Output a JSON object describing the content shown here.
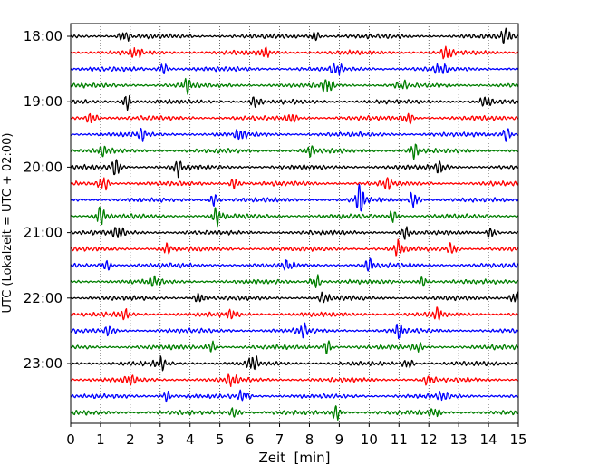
{
  "chart_data": {
    "type": "line",
    "title": "",
    "xlabel": "Zeit  [min]",
    "ylabel": "UTC (Lokalzeit = UTC + 02:00)",
    "xlim": [
      0,
      15
    ],
    "x_ticks": [
      0,
      1,
      2,
      3,
      4,
      5,
      6,
      7,
      8,
      9,
      10,
      11,
      12,
      13,
      14,
      15
    ],
    "x_tick_labels": [
      "0",
      "1",
      "2",
      "3",
      "4",
      "5",
      "6",
      "7",
      "8",
      "9",
      "10",
      "11",
      "12",
      "13",
      "14",
      "15"
    ],
    "y_ticks": [
      "18:00",
      "19:00",
      "20:00",
      "21:00",
      "22:00",
      "23:00"
    ],
    "grid": "vertical dotted",
    "trace_interval_minutes": 15,
    "color_cycle": [
      "#000000",
      "#ff0000",
      "#0000ff",
      "#007f00"
    ],
    "series": [
      {
        "start": "18:00",
        "color": "#000000",
        "events": [
          {
            "x": 1.8,
            "amp": 0.35
          },
          {
            "x": 8.2,
            "amp": 0.3
          },
          {
            "x": 14.6,
            "amp": 0.6
          }
        ]
      },
      {
        "start": "18:15",
        "color": "#ff0000",
        "events": [
          {
            "x": 2.2,
            "amp": 0.3
          },
          {
            "x": 6.5,
            "amp": 0.3
          },
          {
            "x": 12.6,
            "amp": 0.4
          }
        ]
      },
      {
        "start": "18:30",
        "color": "#0000ff",
        "events": [
          {
            "x": 3.1,
            "amp": 0.35
          },
          {
            "x": 8.9,
            "amp": 0.4
          },
          {
            "x": 12.4,
            "amp": 0.35
          }
        ]
      },
      {
        "start": "18:45",
        "color": "#007f00",
        "events": [
          {
            "x": 3.9,
            "amp": 0.4
          },
          {
            "x": 8.6,
            "amp": 0.45
          },
          {
            "x": 11.1,
            "amp": 0.3
          }
        ]
      },
      {
        "start": "19:00",
        "color": "#000000",
        "events": [
          {
            "x": 1.9,
            "amp": 0.45
          },
          {
            "x": 6.2,
            "amp": 0.35
          },
          {
            "x": 13.9,
            "amp": 0.3
          }
        ]
      },
      {
        "start": "19:15",
        "color": "#ff0000",
        "events": [
          {
            "x": 0.7,
            "amp": 0.4
          },
          {
            "x": 7.4,
            "amp": 0.3
          },
          {
            "x": 11.3,
            "amp": 0.35
          }
        ]
      },
      {
        "start": "19:30",
        "color": "#0000ff",
        "events": [
          {
            "x": 2.4,
            "amp": 0.3
          },
          {
            "x": 5.7,
            "amp": 0.35
          },
          {
            "x": 14.6,
            "amp": 0.45
          }
        ]
      },
      {
        "start": "19:45",
        "color": "#007f00",
        "events": [
          {
            "x": 1.1,
            "amp": 0.3
          },
          {
            "x": 8.0,
            "amp": 0.3
          },
          {
            "x": 11.5,
            "amp": 0.45
          }
        ]
      },
      {
        "start": "20:00",
        "color": "#000000",
        "events": [
          {
            "x": 1.5,
            "amp": 0.6
          },
          {
            "x": 3.6,
            "amp": 0.5
          },
          {
            "x": 12.4,
            "amp": 0.4
          }
        ]
      },
      {
        "start": "20:15",
        "color": "#ff0000",
        "events": [
          {
            "x": 1.1,
            "amp": 0.45
          },
          {
            "x": 5.5,
            "amp": 0.35
          },
          {
            "x": 10.6,
            "amp": 0.35
          }
        ]
      },
      {
        "start": "20:30",
        "color": "#0000ff",
        "events": [
          {
            "x": 4.8,
            "amp": 0.4
          },
          {
            "x": 9.7,
            "amp": 0.9
          },
          {
            "x": 11.5,
            "amp": 0.55
          }
        ]
      },
      {
        "start": "20:45",
        "color": "#007f00",
        "events": [
          {
            "x": 1.0,
            "amp": 0.6
          },
          {
            "x": 4.9,
            "amp": 0.5
          },
          {
            "x": 10.8,
            "amp": 0.35
          }
        ]
      },
      {
        "start": "21:00",
        "color": "#000000",
        "events": [
          {
            "x": 1.6,
            "amp": 0.45
          },
          {
            "x": 11.2,
            "amp": 0.4
          },
          {
            "x": 14.1,
            "amp": 0.35
          }
        ]
      },
      {
        "start": "21:15",
        "color": "#ff0000",
        "events": [
          {
            "x": 3.2,
            "amp": 0.3
          },
          {
            "x": 11.0,
            "amp": 0.5
          },
          {
            "x": 12.8,
            "amp": 0.35
          }
        ]
      },
      {
        "start": "21:30",
        "color": "#0000ff",
        "events": [
          {
            "x": 1.2,
            "amp": 0.3
          },
          {
            "x": 7.3,
            "amp": 0.3
          },
          {
            "x": 10.0,
            "amp": 0.4
          }
        ]
      },
      {
        "start": "21:45",
        "color": "#007f00",
        "events": [
          {
            "x": 2.8,
            "amp": 0.3
          },
          {
            "x": 8.2,
            "amp": 0.45
          },
          {
            "x": 11.8,
            "amp": 0.3
          }
        ]
      },
      {
        "start": "22:00",
        "color": "#000000",
        "events": [
          {
            "x": 4.3,
            "amp": 0.35
          },
          {
            "x": 8.5,
            "amp": 0.3
          },
          {
            "x": 14.9,
            "amp": 0.45
          }
        ]
      },
      {
        "start": "22:15",
        "color": "#ff0000",
        "events": [
          {
            "x": 1.8,
            "amp": 0.3
          },
          {
            "x": 5.4,
            "amp": 0.3
          },
          {
            "x": 12.3,
            "amp": 0.35
          }
        ]
      },
      {
        "start": "22:30",
        "color": "#0000ff",
        "events": [
          {
            "x": 1.3,
            "amp": 0.3
          },
          {
            "x": 7.8,
            "amp": 0.35
          },
          {
            "x": 11.0,
            "amp": 0.45
          }
        ]
      },
      {
        "start": "22:45",
        "color": "#007f00",
        "events": [
          {
            "x": 4.7,
            "amp": 0.35
          },
          {
            "x": 8.6,
            "amp": 0.45
          },
          {
            "x": 11.6,
            "amp": 0.3
          }
        ]
      },
      {
        "start": "23:00",
        "color": "#000000",
        "events": [
          {
            "x": 3.0,
            "amp": 0.4
          },
          {
            "x": 6.1,
            "amp": 0.5
          },
          {
            "x": 11.3,
            "amp": 0.3
          }
        ]
      },
      {
        "start": "23:15",
        "color": "#ff0000",
        "events": [
          {
            "x": 2.0,
            "amp": 0.3
          },
          {
            "x": 5.4,
            "amp": 0.4
          },
          {
            "x": 12.0,
            "amp": 0.3
          }
        ]
      },
      {
        "start": "23:30",
        "color": "#0000ff",
        "events": [
          {
            "x": 3.2,
            "amp": 0.3
          },
          {
            "x": 5.8,
            "amp": 0.4
          },
          {
            "x": 12.5,
            "amp": 0.3
          }
        ]
      },
      {
        "start": "23:45",
        "color": "#007f00",
        "events": [
          {
            "x": 5.5,
            "amp": 0.35
          },
          {
            "x": 8.9,
            "amp": 0.5
          },
          {
            "x": 12.2,
            "amp": 0.3
          }
        ]
      }
    ]
  }
}
